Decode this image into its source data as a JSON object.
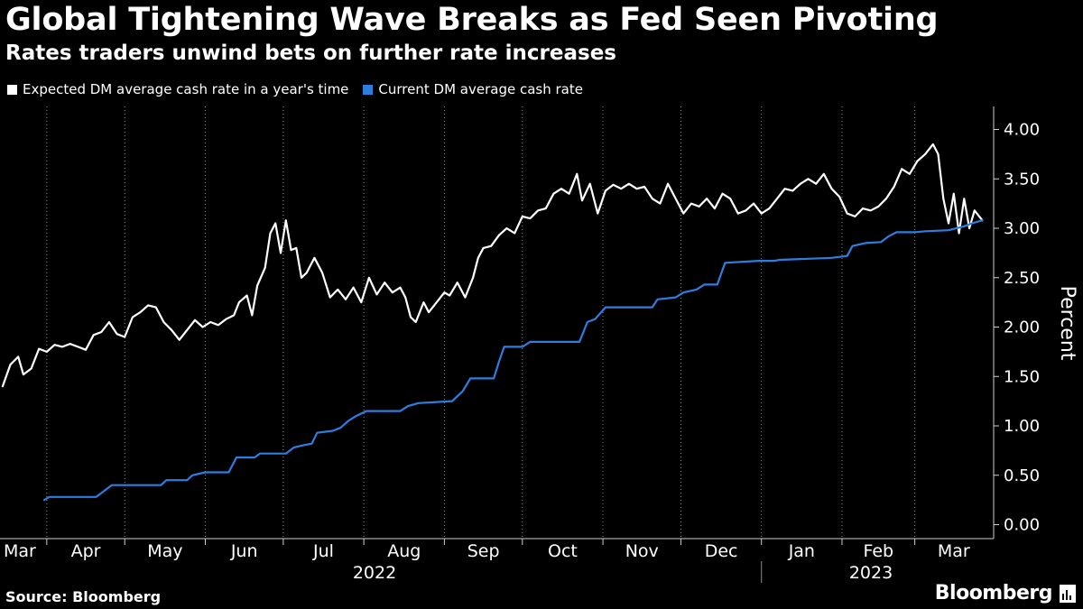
{
  "chart_data": {
    "type": "line",
    "title": "Global Tightening Wave Breaks as Fed Seen Pivoting",
    "subtitle": "Rates traders unwind bets on further rate increases",
    "ylabel": "Percent",
    "ylim": [
      0,
      4.25
    ],
    "yticks": [
      "0.00",
      "0.50",
      "1.00",
      "1.50",
      "2.00",
      "2.50",
      "3.00",
      "3.50",
      "4.00"
    ],
    "grid": "vertical dotted",
    "legend_position": "top-left",
    "x_month_labels": [
      "Mar",
      "Apr",
      "May",
      "Jun",
      "Jul",
      "Aug",
      "Sep",
      "Oct",
      "Nov",
      "Dec",
      "Jan",
      "Feb",
      "Mar"
    ],
    "x_year_labels": [
      "2022",
      "2023"
    ],
    "series": [
      {
        "name": "Expected DM average cash rate in a year's time",
        "color": "#ffffff",
        "points": [
          [
            "2022-03-15",
            1.4
          ],
          [
            "2022-03-18",
            1.62
          ],
          [
            "2022-03-21",
            1.7
          ],
          [
            "2022-03-23",
            1.52
          ],
          [
            "2022-03-26",
            1.58
          ],
          [
            "2022-03-29",
            1.78
          ],
          [
            "2022-04-01",
            1.75
          ],
          [
            "2022-04-04",
            1.82
          ],
          [
            "2022-04-07",
            1.8
          ],
          [
            "2022-04-10",
            1.83
          ],
          [
            "2022-04-13",
            1.8
          ],
          [
            "2022-04-16",
            1.77
          ],
          [
            "2022-04-19",
            1.92
          ],
          [
            "2022-04-22",
            1.95
          ],
          [
            "2022-04-25",
            2.05
          ],
          [
            "2022-04-28",
            1.93
          ],
          [
            "2022-05-01",
            1.9
          ],
          [
            "2022-05-04",
            2.1
          ],
          [
            "2022-05-07",
            2.15
          ],
          [
            "2022-05-10",
            2.22
          ],
          [
            "2022-05-13",
            2.2
          ],
          [
            "2022-05-16",
            2.05
          ],
          [
            "2022-05-19",
            1.97
          ],
          [
            "2022-05-22",
            1.87
          ],
          [
            "2022-05-25",
            1.97
          ],
          [
            "2022-05-28",
            2.07
          ],
          [
            "2022-05-31",
            2.0
          ],
          [
            "2022-06-03",
            2.05
          ],
          [
            "2022-06-06",
            2.02
          ],
          [
            "2022-06-09",
            2.08
          ],
          [
            "2022-06-12",
            2.12
          ],
          [
            "2022-06-14",
            2.25
          ],
          [
            "2022-06-17",
            2.32
          ],
          [
            "2022-06-19",
            2.12
          ],
          [
            "2022-06-21",
            2.42
          ],
          [
            "2022-06-24",
            2.6
          ],
          [
            "2022-06-26",
            2.95
          ],
          [
            "2022-06-28",
            3.05
          ],
          [
            "2022-06-30",
            2.75
          ],
          [
            "2022-07-02",
            3.08
          ],
          [
            "2022-07-04",
            2.78
          ],
          [
            "2022-07-06",
            2.8
          ],
          [
            "2022-07-08",
            2.5
          ],
          [
            "2022-07-10",
            2.55
          ],
          [
            "2022-07-13",
            2.7
          ],
          [
            "2022-07-16",
            2.55
          ],
          [
            "2022-07-19",
            2.3
          ],
          [
            "2022-07-22",
            2.38
          ],
          [
            "2022-07-25",
            2.28
          ],
          [
            "2022-07-28",
            2.4
          ],
          [
            "2022-07-31",
            2.25
          ],
          [
            "2022-08-03",
            2.5
          ],
          [
            "2022-08-06",
            2.33
          ],
          [
            "2022-08-09",
            2.45
          ],
          [
            "2022-08-12",
            2.35
          ],
          [
            "2022-08-15",
            2.4
          ],
          [
            "2022-08-17",
            2.3
          ],
          [
            "2022-08-19",
            2.1
          ],
          [
            "2022-08-21",
            2.05
          ],
          [
            "2022-08-24",
            2.25
          ],
          [
            "2022-08-26",
            2.15
          ],
          [
            "2022-08-29",
            2.25
          ],
          [
            "2022-09-01",
            2.35
          ],
          [
            "2022-09-03",
            2.32
          ],
          [
            "2022-09-06",
            2.45
          ],
          [
            "2022-09-09",
            2.3
          ],
          [
            "2022-09-12",
            2.5
          ],
          [
            "2022-09-14",
            2.7
          ],
          [
            "2022-09-16",
            2.8
          ],
          [
            "2022-09-19",
            2.82
          ],
          [
            "2022-09-22",
            2.93
          ],
          [
            "2022-09-25",
            3.0
          ],
          [
            "2022-09-28",
            2.95
          ],
          [
            "2022-10-01",
            3.12
          ],
          [
            "2022-10-04",
            3.1
          ],
          [
            "2022-10-07",
            3.18
          ],
          [
            "2022-10-10",
            3.2
          ],
          [
            "2022-10-13",
            3.35
          ],
          [
            "2022-10-16",
            3.4
          ],
          [
            "2022-10-19",
            3.35
          ],
          [
            "2022-10-22",
            3.55
          ],
          [
            "2022-10-24",
            3.28
          ],
          [
            "2022-10-27",
            3.45
          ],
          [
            "2022-10-30",
            3.15
          ],
          [
            "2022-11-02",
            3.38
          ],
          [
            "2022-11-05",
            3.44
          ],
          [
            "2022-11-08",
            3.4
          ],
          [
            "2022-11-11",
            3.45
          ],
          [
            "2022-11-14",
            3.4
          ],
          [
            "2022-11-17",
            3.42
          ],
          [
            "2022-11-20",
            3.3
          ],
          [
            "2022-11-23",
            3.25
          ],
          [
            "2022-11-26",
            3.45
          ],
          [
            "2022-11-29",
            3.3
          ],
          [
            "2022-12-02",
            3.15
          ],
          [
            "2022-12-05",
            3.25
          ],
          [
            "2022-12-08",
            3.22
          ],
          [
            "2022-12-11",
            3.3
          ],
          [
            "2022-12-14",
            3.2
          ],
          [
            "2022-12-17",
            3.35
          ],
          [
            "2022-12-20",
            3.3
          ],
          [
            "2022-12-23",
            3.15
          ],
          [
            "2022-12-26",
            3.18
          ],
          [
            "2022-12-29",
            3.25
          ],
          [
            "2023-01-01",
            3.15
          ],
          [
            "2023-01-04",
            3.2
          ],
          [
            "2023-01-07",
            3.3
          ],
          [
            "2023-01-10",
            3.4
          ],
          [
            "2023-01-13",
            3.38
          ],
          [
            "2023-01-16",
            3.45
          ],
          [
            "2023-01-19",
            3.5
          ],
          [
            "2023-01-22",
            3.45
          ],
          [
            "2023-01-25",
            3.55
          ],
          [
            "2023-01-28",
            3.4
          ],
          [
            "2023-01-31",
            3.32
          ],
          [
            "2023-02-03",
            3.15
          ],
          [
            "2023-02-06",
            3.12
          ],
          [
            "2023-02-09",
            3.2
          ],
          [
            "2023-02-12",
            3.18
          ],
          [
            "2023-02-15",
            3.22
          ],
          [
            "2023-02-18",
            3.3
          ],
          [
            "2023-02-21",
            3.42
          ],
          [
            "2023-02-24",
            3.6
          ],
          [
            "2023-02-27",
            3.55
          ],
          [
            "2023-03-02",
            3.68
          ],
          [
            "2023-03-05",
            3.75
          ],
          [
            "2023-03-08",
            3.85
          ],
          [
            "2023-03-10",
            3.75
          ],
          [
            "2023-03-12",
            3.3
          ],
          [
            "2023-03-14",
            3.05
          ],
          [
            "2023-03-16",
            3.35
          ],
          [
            "2023-03-18",
            2.95
          ],
          [
            "2023-03-20",
            3.3
          ],
          [
            "2023-03-22",
            3.0
          ],
          [
            "2023-03-24",
            3.18
          ],
          [
            "2023-03-27",
            3.08
          ]
        ]
      },
      {
        "name": "Current DM average cash rate",
        "color": "#2e7ee0",
        "points": [
          [
            "2022-03-31",
            0.25
          ],
          [
            "2022-04-02",
            0.28
          ],
          [
            "2022-04-20",
            0.28
          ],
          [
            "2022-04-22",
            0.32
          ],
          [
            "2022-04-26",
            0.4
          ],
          [
            "2022-05-15",
            0.4
          ],
          [
            "2022-05-17",
            0.45
          ],
          [
            "2022-05-25",
            0.45
          ],
          [
            "2022-05-27",
            0.5
          ],
          [
            "2022-06-01",
            0.53
          ],
          [
            "2022-06-10",
            0.53
          ],
          [
            "2022-06-13",
            0.68
          ],
          [
            "2022-06-20",
            0.68
          ],
          [
            "2022-06-22",
            0.72
          ],
          [
            "2022-07-02",
            0.72
          ],
          [
            "2022-07-05",
            0.78
          ],
          [
            "2022-07-08",
            0.8
          ],
          [
            "2022-07-12",
            0.82
          ],
          [
            "2022-07-14",
            0.93
          ],
          [
            "2022-07-20",
            0.95
          ],
          [
            "2022-07-23",
            0.98
          ],
          [
            "2022-07-26",
            1.05
          ],
          [
            "2022-07-29",
            1.1
          ],
          [
            "2022-08-02",
            1.15
          ],
          [
            "2022-08-15",
            1.15
          ],
          [
            "2022-08-18",
            1.2
          ],
          [
            "2022-08-22",
            1.23
          ],
          [
            "2022-09-04",
            1.25
          ],
          [
            "2022-09-08",
            1.35
          ],
          [
            "2022-09-11",
            1.48
          ],
          [
            "2022-09-20",
            1.48
          ],
          [
            "2022-09-22",
            1.65
          ],
          [
            "2022-09-24",
            1.8
          ],
          [
            "2022-10-01",
            1.8
          ],
          [
            "2022-10-04",
            1.85
          ],
          [
            "2022-10-23",
            1.85
          ],
          [
            "2022-10-26",
            2.05
          ],
          [
            "2022-10-29",
            2.08
          ],
          [
            "2022-11-02",
            2.2
          ],
          [
            "2022-11-20",
            2.2
          ],
          [
            "2022-11-22",
            2.28
          ],
          [
            "2022-11-29",
            2.3
          ],
          [
            "2022-12-02",
            2.35
          ],
          [
            "2022-12-07",
            2.38
          ],
          [
            "2022-12-10",
            2.43
          ],
          [
            "2022-12-15",
            2.43
          ],
          [
            "2022-12-18",
            2.65
          ],
          [
            "2022-12-31",
            2.67
          ],
          [
            "2023-01-06",
            2.67
          ],
          [
            "2023-01-08",
            2.68
          ],
          [
            "2023-01-28",
            2.7
          ],
          [
            "2023-02-03",
            2.72
          ],
          [
            "2023-02-05",
            2.82
          ],
          [
            "2023-02-10",
            2.85
          ],
          [
            "2023-02-16",
            2.86
          ],
          [
            "2023-02-19",
            2.92
          ],
          [
            "2023-02-22",
            2.96
          ],
          [
            "2023-03-01",
            2.96
          ],
          [
            "2023-03-05",
            2.97
          ],
          [
            "2023-03-14",
            2.98
          ],
          [
            "2023-03-20",
            3.02
          ],
          [
            "2023-03-23",
            3.05
          ],
          [
            "2023-03-27",
            3.08
          ]
        ]
      }
    ]
  },
  "footer": {
    "source": "Source: Bloomberg",
    "brand": "Bloomberg"
  }
}
